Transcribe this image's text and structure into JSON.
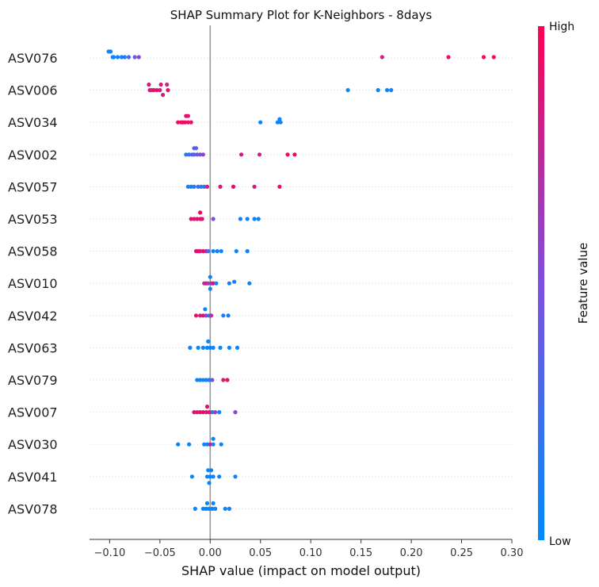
{
  "chart_data": {
    "type": "scatter",
    "title": "SHAP Summary Plot for K-Neighbors - 8days",
    "xlabel": "SHAP value (impact on model output)",
    "xlim": [
      -0.12,
      0.3
    ],
    "xticks": [
      -0.1,
      -0.05,
      0.0,
      0.05,
      0.1,
      0.15,
      0.2,
      0.25,
      0.3
    ],
    "xtick_labels": [
      "−0.10",
      "−0.05",
      "0.00",
      "0.05",
      "0.10",
      "0.15",
      "0.20",
      "0.25",
      "0.30"
    ],
    "colorbar": {
      "label": "Feature value",
      "high": "High",
      "low": "Low",
      "low_color": "#008bfb",
      "high_color": "#ff0051"
    },
    "features": [
      {
        "name": "ASV076",
        "points": [
          [
            -0.101,
            0.9
          ],
          [
            -0.099,
            0.2
          ],
          [
            -0.097,
            0.5
          ],
          [
            -0.096,
            -0.4
          ],
          [
            -0.092,
            0.2
          ],
          [
            -0.088,
            0.2
          ],
          [
            -0.085,
            0.2
          ],
          [
            -0.081,
            0.2
          ],
          [
            -0.075,
            0.2
          ],
          [
            -0.071,
            0.2
          ],
          [
            0.171,
            0.8
          ],
          [
            0.237,
            0.9
          ],
          [
            0.272,
            0.95
          ],
          [
            0.282,
            0.97
          ]
        ],
        "colors": [
          0.05,
          0.05,
          0.05,
          0.05,
          0.05,
          0.1,
          0.15,
          0.3,
          0.45,
          0.55,
          0.8,
          0.9,
          0.95,
          0.97
        ],
        "y_offsets": [
          -8,
          -8,
          -1,
          -1,
          -1,
          -1,
          -1,
          -1,
          -1,
          -1,
          -1,
          -1,
          -1,
          -1
        ]
      },
      {
        "name": "ASV006",
        "points": [
          [
            -0.061,
            0
          ],
          [
            -0.06,
            0
          ],
          [
            -0.058,
            0
          ],
          [
            -0.056,
            0
          ],
          [
            -0.053,
            0
          ],
          [
            -0.05,
            0
          ],
          [
            -0.047,
            0
          ],
          [
            -0.042,
            0
          ],
          [
            -0.049,
            0
          ],
          [
            -0.043,
            0
          ],
          [
            0.137,
            0
          ],
          [
            0.167,
            0
          ],
          [
            0.176,
            0
          ],
          [
            0.18,
            0
          ]
        ],
        "colors": [
          0.85,
          0.9,
          0.85,
          0.9,
          0.9,
          0.85,
          0.85,
          0.9,
          0.85,
          0.8,
          0.05,
          0.05,
          0.05,
          0.05
        ],
        "y_offsets": [
          -7,
          0,
          0,
          0,
          0,
          0,
          6,
          0,
          -7,
          -7,
          0,
          0,
          0,
          0
        ]
      },
      {
        "name": "ASV034",
        "points": [
          [
            -0.032,
            0
          ],
          [
            -0.029,
            0
          ],
          [
            -0.027,
            0
          ],
          [
            -0.025,
            0
          ],
          [
            -0.022,
            0
          ],
          [
            -0.019,
            0
          ],
          [
            -0.024,
            0
          ],
          [
            -0.022,
            0
          ],
          [
            0.05,
            0
          ],
          [
            0.067,
            0
          ],
          [
            0.07,
            0
          ],
          [
            0.069,
            0
          ]
        ],
        "colors": [
          0.95,
          0.95,
          0.95,
          0.95,
          0.9,
          0.9,
          0.9,
          0.9,
          0.05,
          0.05,
          0.05,
          0.05
        ],
        "y_offsets": [
          0,
          0,
          0,
          0,
          0,
          0,
          -8,
          -8,
          0,
          0,
          0,
          -4
        ]
      },
      {
        "name": "ASV002",
        "points": [
          [
            -0.024,
            0
          ],
          [
            -0.021,
            0
          ],
          [
            -0.018,
            0
          ],
          [
            -0.016,
            0
          ],
          [
            -0.013,
            0
          ],
          [
            -0.01,
            0
          ],
          [
            -0.007,
            0
          ],
          [
            -0.016,
            0
          ],
          [
            -0.014,
            0
          ],
          [
            0.031,
            0
          ],
          [
            0.049,
            0
          ],
          [
            0.077,
            0
          ],
          [
            0.084,
            0
          ]
        ],
        "colors": [
          0.15,
          0.2,
          0.3,
          0.35,
          0.4,
          0.5,
          0.55,
          0.3,
          0.35,
          0.85,
          0.8,
          0.95,
          0.95
        ],
        "y_offsets": [
          0,
          0,
          0,
          0,
          0,
          0,
          0,
          -8,
          -8,
          0,
          0,
          0,
          0
        ]
      },
      {
        "name": "ASV057",
        "points": [
          [
            -0.022,
            0
          ],
          [
            -0.019,
            0
          ],
          [
            -0.016,
            0
          ],
          [
            -0.012,
            0
          ],
          [
            -0.009,
            0
          ],
          [
            -0.006,
            0
          ],
          [
            -0.003,
            0
          ],
          [
            0.01,
            0
          ],
          [
            0.023,
            0
          ],
          [
            0.044,
            0
          ],
          [
            0.069,
            0
          ]
        ],
        "colors": [
          0.1,
          0.05,
          0.1,
          0.3,
          0.15,
          0.2,
          0.85,
          0.85,
          0.9,
          0.85,
          0.9
        ],
        "y_offsets": [
          0,
          0,
          0,
          0,
          0,
          0,
          0,
          0,
          0,
          0,
          0
        ]
      },
      {
        "name": "ASV053",
        "points": [
          [
            -0.019,
            0
          ],
          [
            -0.016,
            0
          ],
          [
            -0.013,
            0
          ],
          [
            -0.01,
            0
          ],
          [
            -0.008,
            0
          ],
          [
            -0.01,
            0
          ],
          [
            0.003,
            0
          ],
          [
            0.03,
            0
          ],
          [
            0.037,
            0
          ],
          [
            0.044,
            0
          ],
          [
            0.048,
            0
          ]
        ],
        "colors": [
          0.9,
          0.85,
          0.9,
          0.85,
          0.9,
          0.95,
          0.5,
          0.05,
          0.05,
          0.05,
          0.05
        ],
        "y_offsets": [
          0,
          0,
          0,
          0,
          0,
          -8,
          0,
          0,
          0,
          0,
          0
        ]
      },
      {
        "name": "ASV058",
        "points": [
          [
            -0.014,
            0
          ],
          [
            -0.012,
            0
          ],
          [
            -0.01,
            0
          ],
          [
            -0.007,
            0
          ],
          [
            -0.004,
            0
          ],
          [
            -0.002,
            0
          ],
          [
            0.003,
            0
          ],
          [
            0.007,
            0
          ],
          [
            0.011,
            0
          ],
          [
            0.026,
            0
          ],
          [
            0.037,
            0
          ]
        ],
        "colors": [
          0.9,
          0.9,
          0.85,
          0.9,
          0.85,
          0.2,
          0.05,
          0.05,
          0.05,
          0.05,
          0.05
        ],
        "y_offsets": [
          0,
          0,
          0,
          0,
          0,
          0,
          0,
          0,
          0,
          0,
          0
        ]
      },
      {
        "name": "ASV010",
        "points": [
          [
            -0.006,
            0
          ],
          [
            -0.004,
            0
          ],
          [
            -0.002,
            0
          ],
          [
            0.001,
            0
          ],
          [
            0.003,
            0
          ],
          [
            0.006,
            0
          ],
          [
            0.0,
            0
          ],
          [
            0.0,
            0
          ],
          [
            0.019,
            0
          ],
          [
            0.024,
            0
          ],
          [
            0.039,
            0
          ]
        ],
        "colors": [
          0.7,
          0.85,
          0.6,
          0.65,
          0.9,
          0.05,
          0.05,
          0.05,
          0.05,
          0.05,
          0.05
        ],
        "y_offsets": [
          0,
          0,
          0,
          0,
          0,
          0,
          -8,
          7,
          0,
          -2,
          0
        ]
      },
      {
        "name": "ASV042",
        "points": [
          [
            -0.014,
            0
          ],
          [
            -0.01,
            0
          ],
          [
            -0.007,
            0
          ],
          [
            -0.004,
            0
          ],
          [
            -0.001,
            0
          ],
          [
            0.001,
            0
          ],
          [
            -0.005,
            0
          ],
          [
            0.013,
            0
          ],
          [
            0.018,
            0
          ]
        ],
        "colors": [
          0.9,
          0.85,
          0.9,
          0.6,
          0.1,
          0.7,
          0.05,
          0.05,
          0.05
        ],
        "y_offsets": [
          0,
          0,
          0,
          0,
          0,
          0,
          -8,
          0,
          0
        ]
      },
      {
        "name": "ASV063",
        "points": [
          [
            -0.02,
            0
          ],
          [
            -0.012,
            0
          ],
          [
            -0.007,
            0
          ],
          [
            -0.003,
            0
          ],
          [
            0.0,
            0
          ],
          [
            0.003,
            0
          ],
          [
            0.01,
            0
          ],
          [
            0.019,
            0
          ],
          [
            0.027,
            0
          ],
          [
            -0.002,
            0
          ]
        ],
        "colors": [
          0.05,
          0.05,
          0.05,
          0.05,
          0.05,
          0.05,
          0.05,
          0.05,
          0.05,
          0.05
        ],
        "y_offsets": [
          0,
          0,
          0,
          0,
          0,
          0,
          0,
          0,
          0,
          -8
        ]
      },
      {
        "name": "ASV079",
        "points": [
          [
            -0.013,
            0
          ],
          [
            -0.01,
            0
          ],
          [
            -0.007,
            0
          ],
          [
            -0.004,
            0
          ],
          [
            -0.001,
            0
          ],
          [
            0.002,
            0
          ],
          [
            0.013,
            0
          ],
          [
            0.017,
            0
          ]
        ],
        "colors": [
          0.05,
          0.05,
          0.05,
          0.1,
          0.05,
          0.5,
          0.9,
          0.9
        ],
        "y_offsets": [
          0,
          0,
          0,
          0,
          0,
          0,
          0,
          0
        ]
      },
      {
        "name": "ASV007",
        "points": [
          [
            -0.016,
            0
          ],
          [
            -0.013,
            0
          ],
          [
            -0.01,
            0
          ],
          [
            -0.007,
            0
          ],
          [
            -0.004,
            0
          ],
          [
            -0.001,
            0
          ],
          [
            0.002,
            0
          ],
          [
            0.005,
            0
          ],
          [
            0.009,
            0
          ],
          [
            0.025,
            0
          ],
          [
            -0.003,
            0
          ]
        ],
        "colors": [
          0.9,
          0.85,
          0.9,
          0.9,
          0.85,
          0.9,
          0.3,
          0.6,
          0.05,
          0.55,
          0.9
        ],
        "y_offsets": [
          0,
          0,
          0,
          0,
          0,
          0,
          0,
          0,
          0,
          0,
          -7
        ]
      },
      {
        "name": "ASV030",
        "points": [
          [
            -0.032,
            0
          ],
          [
            -0.021,
            0
          ],
          [
            -0.006,
            0
          ],
          [
            -0.003,
            0
          ],
          [
            0.0,
            0
          ],
          [
            0.003,
            0
          ],
          [
            0.011,
            0
          ],
          [
            0.003,
            0
          ]
        ],
        "colors": [
          0.05,
          0.05,
          0.05,
          0.05,
          0.85,
          0.05,
          0.05,
          0.05
        ],
        "y_offsets": [
          0,
          0,
          0,
          0,
          0,
          0,
          0,
          -7
        ]
      },
      {
        "name": "ASV041",
        "points": [
          [
            -0.018,
            0
          ],
          [
            -0.003,
            0
          ],
          [
            0.0,
            0
          ],
          [
            0.003,
            0
          ],
          [
            0.009,
            0
          ],
          [
            0.025,
            0
          ],
          [
            -0.002,
            0
          ],
          [
            0.001,
            0
          ],
          [
            -0.001,
            0
          ]
        ],
        "colors": [
          0.05,
          0.05,
          0.05,
          0.05,
          0.05,
          0.05,
          0.05,
          0.05,
          0.05
        ],
        "y_offsets": [
          0,
          0,
          0,
          0,
          0,
          0,
          -8,
          -8,
          8
        ]
      },
      {
        "name": "ASV078",
        "points": [
          [
            -0.015,
            0
          ],
          [
            -0.007,
            0
          ],
          [
            -0.004,
            0
          ],
          [
            -0.001,
            0
          ],
          [
            0.002,
            0
          ],
          [
            0.005,
            0
          ],
          [
            0.015,
            0
          ],
          [
            0.019,
            0
          ],
          [
            -0.003,
            0
          ],
          [
            0.003,
            0
          ]
        ],
        "colors": [
          0.05,
          0.05,
          0.05,
          0.05,
          0.05,
          0.05,
          0.05,
          0.05,
          0.05,
          0.05
        ],
        "y_offsets": [
          0,
          0,
          0,
          0,
          0,
          0,
          0,
          0,
          -7,
          -7
        ]
      }
    ]
  }
}
